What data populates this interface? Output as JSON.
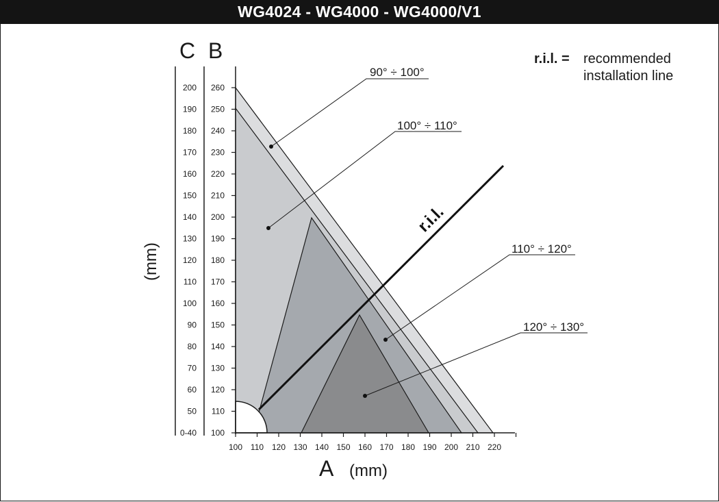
{
  "header": {
    "title": "WG4024 - WG4000 - WG4000/V1"
  },
  "axes": {
    "c_label": "C",
    "b_label": "B",
    "a_label": "A",
    "x_unit": "(mm)",
    "y_unit": "(mm)",
    "a_ticks": [
      "100",
      "110",
      "120",
      "130",
      "140",
      "150",
      "160",
      "170",
      "180",
      "190",
      "200",
      "210",
      "220"
    ],
    "b_ticks": [
      "100",
      "110",
      "120",
      "130",
      "140",
      "150",
      "160",
      "170",
      "180",
      "190",
      "200",
      "210",
      "220",
      "230",
      "240",
      "250",
      "260"
    ],
    "c_ticks": [
      "0-40",
      "50",
      "60",
      "70",
      "80",
      "90",
      "100",
      "110",
      "120",
      "130",
      "140",
      "150",
      "160",
      "170",
      "180",
      "190",
      "200"
    ]
  },
  "legend": {
    "abbr": "r.i.l. =",
    "line1": "recommended",
    "line2": "installation line"
  },
  "ril_label": "r.i.l.",
  "regions": [
    {
      "label": "90° ÷ 100°",
      "color": "#dcdddf"
    },
    {
      "label": "100° ÷ 110°",
      "color": "#c9cbce"
    },
    {
      "label": "110° ÷ 120°",
      "color": "#a5a9ae"
    },
    {
      "label": "120° ÷ 130°",
      "color": "#8a8b8d"
    }
  ]
}
